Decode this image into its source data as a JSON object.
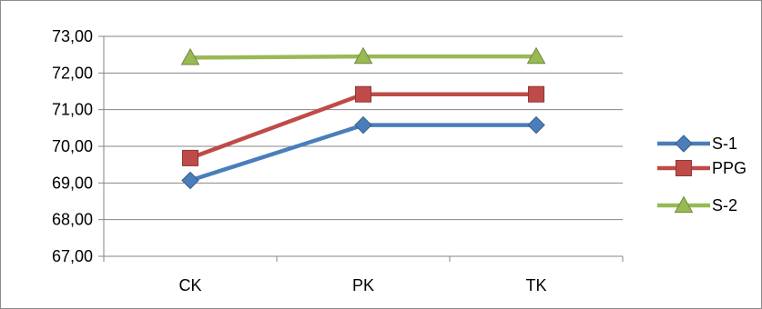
{
  "chart_data": {
    "type": "line",
    "categories": [
      "CK",
      "PK",
      "TK"
    ],
    "series": [
      {
        "name": "S-1",
        "values": [
          69.07,
          70.58,
          70.58
        ],
        "color": "#4a7ebb",
        "marker": "diamond"
      },
      {
        "name": "PPG",
        "values": [
          69.68,
          71.42,
          71.42
        ],
        "color": "#be4b48",
        "marker": "square"
      },
      {
        "name": "S-2",
        "values": [
          72.42,
          72.45,
          72.45
        ],
        "color": "#98b954",
        "marker": "triangle"
      }
    ],
    "ylim": [
      67,
      73
    ],
    "yticks": [
      "67,00",
      "68,00",
      "69,00",
      "70,00",
      "71,00",
      "72,00",
      "73,00"
    ],
    "grid": "horizontal",
    "legend_position": "right"
  }
}
